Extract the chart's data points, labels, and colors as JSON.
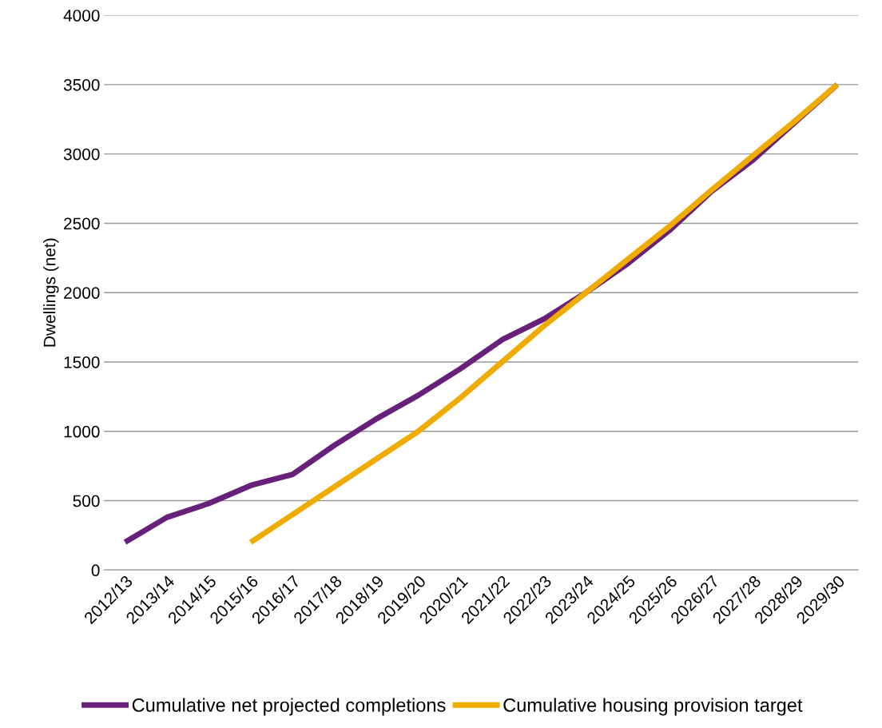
{
  "chart_data": {
    "type": "line",
    "ylabel": "Dwellings (net)",
    "categories": [
      "2012/13",
      "2013/14",
      "2014/15",
      "2015/16",
      "2016/17",
      "2017/18",
      "2018/19",
      "2019/20",
      "2020/21",
      "2021/22",
      "2022/23",
      "2023/24",
      "2024/25",
      "2025/26",
      "2026/27",
      "2027/28",
      "2028/29",
      "2029/30"
    ],
    "series": [
      {
        "name": "Cumulative net projected completions",
        "color": "#68217a",
        "values": [
          200,
          380,
          480,
          610,
          690,
          900,
          1090,
          1260,
          1450,
          1660,
          1810,
          2000,
          2210,
          2450,
          2730,
          2960,
          3230,
          3500
        ]
      },
      {
        "name": "Cumulative housing provision target",
        "color": "#f0ab00",
        "values": [
          null,
          null,
          null,
          200,
          400,
          600,
          800,
          1000,
          1240,
          1500,
          1760,
          2000,
          2240,
          2480,
          2740,
          2990,
          3240,
          3500
        ]
      }
    ],
    "ylim": [
      0,
      4000
    ],
    "yticks": [
      0,
      500,
      1000,
      1500,
      2000,
      2500,
      3000,
      3500,
      4000
    ],
    "grid": "y",
    "legend": "bottom",
    "marker": "none",
    "line_style": "solid"
  }
}
